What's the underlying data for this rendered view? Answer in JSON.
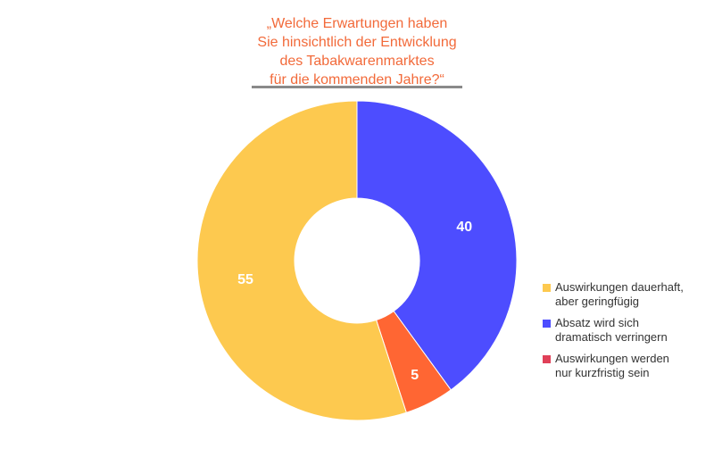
{
  "title_lines": [
    "„Welche Erwartungen haben",
    "Sie hinsichtlich der Entwicklung",
    "des Tabakwarenmarktes",
    "für die kommenden Jahre?“"
  ],
  "colors": {
    "title": "#f26a3a",
    "rule": "#8a8a8a"
  },
  "chart_data": {
    "type": "pie",
    "donut": true,
    "slices": [
      {
        "label": "Absatz wird sich dramatisch verringern",
        "value": 40,
        "color": "#4d4dff"
      },
      {
        "label": "Auswirkungen werden nur kurzfristig sein",
        "value": 5,
        "color": "#ff6633"
      },
      {
        "label": "Auswirkungen dauerhaft, aber geringfügig",
        "value": 55,
        "color": "#fdc94f"
      }
    ],
    "legend": {
      "placement": "right",
      "items": [
        {
          "lines": [
            "Auswirkungen dauerhaft,",
            "aber geringfügig"
          ],
          "color": "#fdc94f"
        },
        {
          "lines": [
            "Absatz wird sich",
            "dramatisch verringern"
          ],
          "color": "#4d4dff"
        },
        {
          "lines": [
            "Auswirkungen werden",
            "nur kurzfristig sein"
          ],
          "color": "#e04058"
        }
      ]
    }
  }
}
